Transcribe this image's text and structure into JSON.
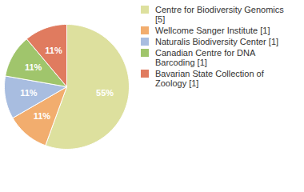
{
  "chart_data": {
    "type": "pie",
    "categories": [
      "Centre for Biodiversity Genomics [5]",
      "Wellcome Sanger Institute [1]",
      "Naturalis Biodiversity Center [1]",
      "Canadian Centre for DNA Barcoding [1]",
      "Bavarian State Collection of Zoology [1]"
    ],
    "values": [
      55,
      11,
      11,
      11,
      11
    ],
    "value_labels": [
      "55%",
      "11%",
      "11%",
      "11%",
      "11%"
    ],
    "colors": [
      "#dde09e",
      "#f2ad6e",
      "#a8bde0",
      "#a0c56c",
      "#e07b5f"
    ],
    "data_labels": true,
    "legend": "top-right"
  }
}
